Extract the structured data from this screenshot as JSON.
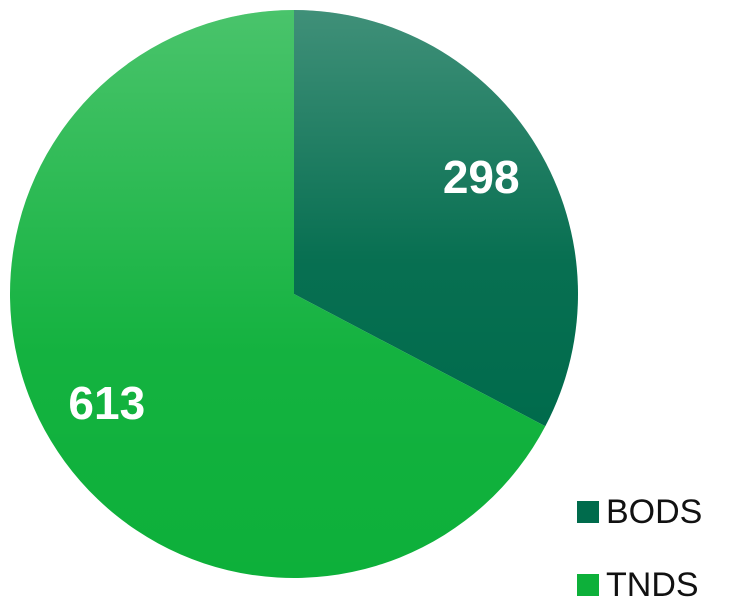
{
  "chart_data": {
    "type": "pie",
    "categories": [
      "BODS",
      "TNDS"
    ],
    "values": [
      298,
      613
    ],
    "colors": [
      "#006b4c",
      "#0db03a"
    ]
  }
}
